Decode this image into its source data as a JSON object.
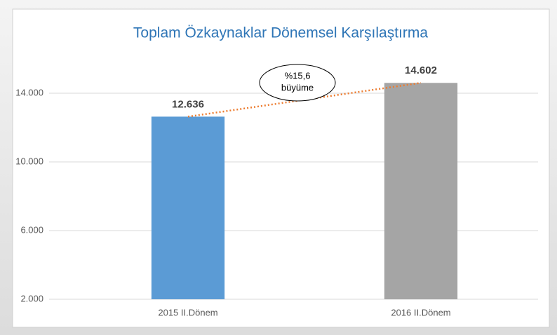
{
  "chart_data": {
    "type": "bar",
    "title": "Toplam Özkaynaklar Dönemsel Karşılaştırma",
    "categories": [
      "2015 II.Dönem",
      "2016 II.Dönem"
    ],
    "values": [
      12636,
      14602
    ],
    "value_labels": [
      "12.636",
      "14.602"
    ],
    "colors": [
      "#5b9bd5",
      "#a5a5a5"
    ],
    "trendline_color": "#ed7d31",
    "annotation": [
      "%15,6",
      "büyüme"
    ],
    "ylim": [
      2000,
      16000
    ],
    "yticks": [
      {
        "value": 2000,
        "label": "2.000"
      },
      {
        "value": 6000,
        "label": "6.000"
      },
      {
        "value": 10000,
        "label": "10.000"
      },
      {
        "value": 14000,
        "label": "14.000"
      }
    ],
    "grid": true
  }
}
